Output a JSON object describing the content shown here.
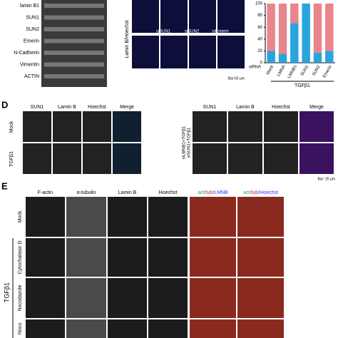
{
  "panel_c": {
    "blot_labels": [
      "lamin B1",
      "SUN1",
      "SUN2",
      "Emerin",
      "N-Cadherin",
      "Vimentin",
      "ACTIN"
    ],
    "image_label": "Lamin B/Hoechst",
    "image_captions": [
      "siSUN1",
      "siSUN2",
      "siEmerin"
    ],
    "scale_bar": "Bar:50 μm"
  },
  "chart_data": {
    "type": "bar",
    "stacked": true,
    "x_axis_label": "siRNA",
    "group_label": "TGFβ1",
    "categories": [
      "Mock",
      "LMNA",
      "LMNB1",
      "SUN1",
      "SUN2",
      "Emerin"
    ],
    "series": [
      {
        "color": "#2aa4dc",
        "values": [
          20,
          15,
          67,
          100,
          17,
          20
        ]
      },
      {
        "color": "#e8858d",
        "values": [
          80,
          85,
          33,
          0,
          83,
          80
        ]
      }
    ],
    "ylim": [
      0,
      100
    ],
    "yticks": [
      0,
      20,
      40,
      60,
      80,
      100
    ]
  },
  "panel_d": {
    "letter": "D",
    "left_headers": [
      "SUN1",
      "Lamin B",
      "Hoechst",
      "Merge"
    ],
    "right_headers": [
      "SUN1",
      "Lamin B",
      "Hoechst",
      "Merge"
    ],
    "left_rows": [
      "Mock",
      "TGFβ1"
    ],
    "right_rows": [
      "siLMNB1+TGFβ1",
      "siSUN1+TGFβ1"
    ],
    "scale_bar": "Bar: 20 μm"
  },
  "panel_e": {
    "letter": "E",
    "headers": [
      "F-actin",
      "α-tubulin",
      "Lamin B",
      "Hoechst"
    ],
    "merge_headers": [
      [
        "act",
        "/tub",
        "/LMNB"
      ],
      [
        "act",
        "/tub",
        "/Hoechst"
      ]
    ],
    "rows": [
      "Mock",
      "Cytochalasin D",
      "Nocodazole",
      "Noco"
    ],
    "group_label": "TGFβ1"
  }
}
